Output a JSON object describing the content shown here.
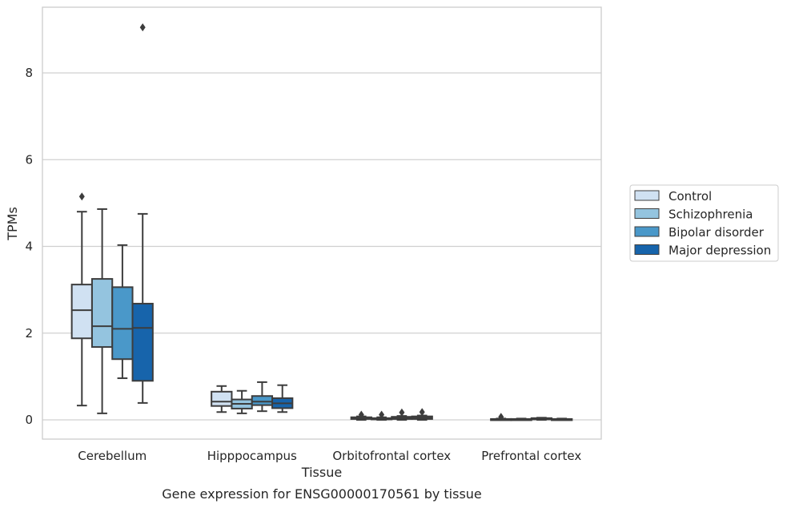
{
  "chart_data": {
    "type": "box",
    "xlabel": "Tissue",
    "ylabel": "TPMs",
    "caption": "Gene expression for ENSG00000170561 by tissue",
    "ylim": [
      -0.45,
      9.6
    ],
    "yticks": [
      0,
      2,
      4,
      6,
      8
    ],
    "grid": "horizontal",
    "legend_placement": "right",
    "categories": [
      "Cerebellum",
      "Hipppocampus",
      "Orbitofrontal cortex",
      "Prefrontal cortex"
    ],
    "colors": {
      "Control": "#d0e1f2",
      "Schizophrenia": "#94c4df",
      "Bipolar disorder": "#4a98c9",
      "Major depression": "#1764ab"
    },
    "series": [
      {
        "name": "Control",
        "boxes": [
          {
            "whislo": 0.33,
            "q1": 1.88,
            "med": 2.53,
            "q3": 3.12,
            "whishi": 4.8,
            "fliers": [
              5.15
            ]
          },
          {
            "whislo": 0.18,
            "q1": 0.32,
            "med": 0.42,
            "q3": 0.65,
            "whishi": 0.78,
            "fliers": []
          },
          {
            "whislo": 0.0,
            "q1": 0.02,
            "med": 0.04,
            "q3": 0.06,
            "whishi": 0.08,
            "fliers": [
              0.12
            ]
          },
          {
            "whislo": 0.0,
            "q1": 0.0,
            "med": 0.01,
            "q3": 0.02,
            "whishi": 0.03,
            "fliers": [
              0.07
            ]
          }
        ]
      },
      {
        "name": "Schizophrenia",
        "boxes": [
          {
            "whislo": 0.15,
            "q1": 1.68,
            "med": 2.16,
            "q3": 3.25,
            "whishi": 4.86,
            "fliers": []
          },
          {
            "whislo": 0.15,
            "q1": 0.26,
            "med": 0.37,
            "q3": 0.47,
            "whishi": 0.67,
            "fliers": []
          },
          {
            "whislo": 0.0,
            "q1": 0.01,
            "med": 0.02,
            "q3": 0.04,
            "whishi": 0.06,
            "fliers": [
              0.12
            ]
          },
          {
            "whislo": 0.0,
            "q1": 0.0,
            "med": 0.01,
            "q3": 0.02,
            "whishi": 0.03,
            "fliers": []
          }
        ]
      },
      {
        "name": "Bipolar disorder",
        "boxes": [
          {
            "whislo": 0.96,
            "q1": 1.4,
            "med": 2.1,
            "q3": 3.06,
            "whishi": 4.03,
            "fliers": []
          },
          {
            "whislo": 0.2,
            "q1": 0.34,
            "med": 0.42,
            "q3": 0.55,
            "whishi": 0.87,
            "fliers": []
          },
          {
            "whislo": 0.0,
            "q1": 0.02,
            "med": 0.04,
            "q3": 0.07,
            "whishi": 0.09,
            "fliers": [
              0.17
            ]
          },
          {
            "whislo": 0.0,
            "q1": 0.01,
            "med": 0.02,
            "q3": 0.04,
            "whishi": 0.05,
            "fliers": []
          }
        ]
      },
      {
        "name": "Major depression",
        "boxes": [
          {
            "whislo": 0.39,
            "q1": 0.9,
            "med": 2.12,
            "q3": 2.68,
            "whishi": 4.75,
            "fliers": [
              9.05
            ]
          },
          {
            "whislo": 0.18,
            "q1": 0.27,
            "med": 0.38,
            "q3": 0.5,
            "whishi": 0.8,
            "fliers": []
          },
          {
            "whislo": 0.0,
            "q1": 0.02,
            "med": 0.05,
            "q3": 0.08,
            "whishi": 0.1,
            "fliers": [
              0.18
            ]
          },
          {
            "whislo": 0.0,
            "q1": 0.0,
            "med": 0.01,
            "q3": 0.02,
            "whishi": 0.03,
            "fliers": []
          }
        ]
      }
    ]
  }
}
